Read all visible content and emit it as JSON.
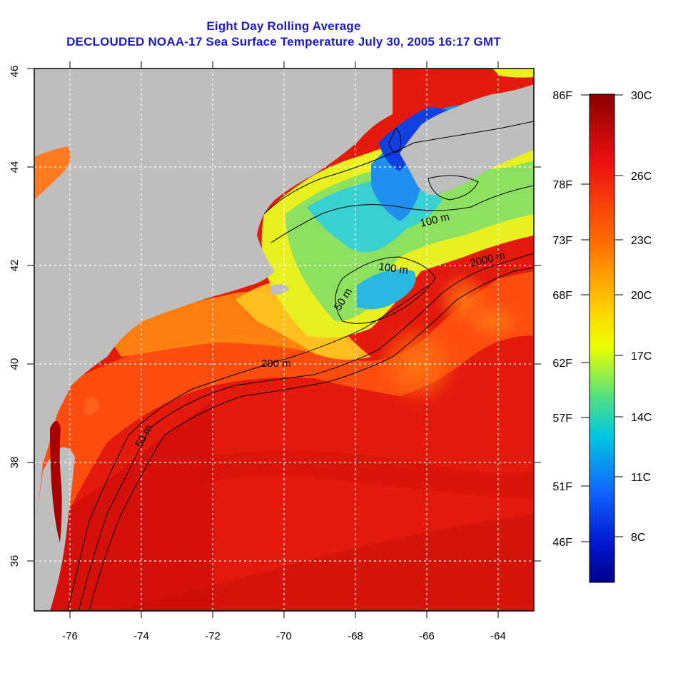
{
  "title": {
    "line1": "Eight Day Rolling Average",
    "line2": "DECLOUDED NOAA-17 Sea Surface Temperature July 30, 2005 16:17 GMT"
  },
  "map": {
    "lon_range": [
      -77,
      -63
    ],
    "lat_range": [
      35,
      46
    ],
    "x_ticks": [
      "-76",
      "-74",
      "-72",
      "-70",
      "-68",
      "-66",
      "-64"
    ],
    "y_ticks": [
      "36",
      "38",
      "40",
      "42",
      "44",
      "46"
    ],
    "land_color": "#bebebe",
    "contour_labels": [
      "100 m",
      "2000 m",
      "100 m",
      "50 m",
      "200 m",
      "50 m"
    ]
  },
  "colorbar": {
    "fahrenheit": [
      "86F",
      "78F",
      "73F",
      "68F",
      "62F",
      "57F",
      "51F",
      "46F"
    ],
    "celsius": [
      "30C",
      "26C",
      "23C",
      "20C",
      "17C",
      "14C",
      "11C",
      "8C"
    ],
    "colors": [
      "#8b0000",
      "#ff0000",
      "#ff8c00",
      "#ffff00",
      "#00c8c8",
      "#0078ff",
      "#0000cd",
      "#00008b"
    ]
  }
}
